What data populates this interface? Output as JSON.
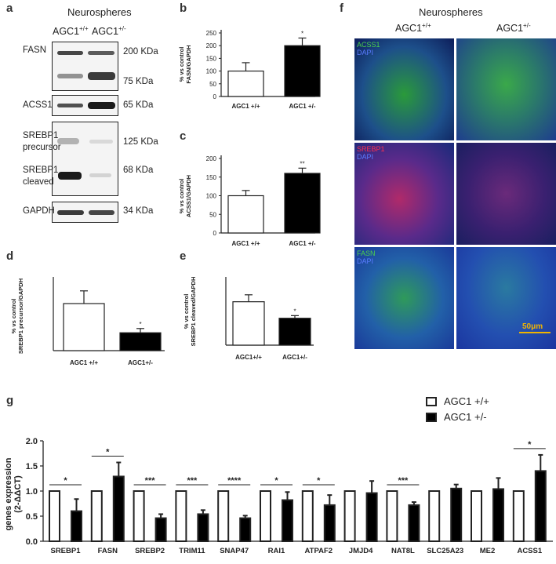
{
  "panels": {
    "a": {
      "letter": "a",
      "title": "Neurospheres",
      "col1": "AGC1",
      "col1_sup": "+/+",
      "col2": "AGC1",
      "col2_sup": "+/-",
      "fasn": "FASN",
      "fasn_kda1": "200 KDa",
      "fasn_kda2": "75 KDa",
      "acss1": "ACSS1",
      "acss1_kda": "65 KDa",
      "srebp_prec_1": "SREBP1",
      "srebp_prec_2": "precursor",
      "srebp_prec_kda": "125 KDa",
      "srebp_cl_1": "SREBP1",
      "srebp_cl_2": "cleaved",
      "srebp_cl_kda": "68 KDa",
      "gapdh": "GAPDH",
      "gapdh_kda": "34 KDa"
    },
    "b": {
      "letter": "b"
    },
    "c": {
      "letter": "c"
    },
    "d": {
      "letter": "d"
    },
    "e": {
      "letter": "e"
    },
    "f": {
      "letter": "f",
      "title": "Neurospheres",
      "col1": "AGC1",
      "col1_sup": "+/+",
      "col2": "AGC1",
      "col2_sup": "+/-",
      "row1_label1": "ACSS1",
      "row1_label2": "DAPI",
      "row2_label1": "SREBP1",
      "row2_label2": "DAPI",
      "row3_label1": "FASN",
      "row3_label2": "DAPI",
      "scale": "50μm",
      "colors": {
        "green": "#3ec43e",
        "blue": "#2f43b8",
        "red": "#d0243a",
        "magenta": "#8a2e86",
        "scale": "#f0b400"
      }
    },
    "g": {
      "letter": "g"
    }
  },
  "chart_data": [
    {
      "id": "b",
      "type": "bar",
      "categories": [
        "AGC1 +/+",
        "AGC1 +/-"
      ],
      "values": [
        100,
        200
      ],
      "errors": [
        33,
        30
      ],
      "fills": [
        "#ffffff",
        "#000000"
      ],
      "significance": [
        "",
        "*"
      ],
      "ylabel": "% vs control\nFASN/GAPDH",
      "ylim": [
        0,
        250
      ],
      "yticks": [
        0,
        50,
        100,
        150,
        200,
        250
      ]
    },
    {
      "id": "c",
      "type": "bar",
      "categories": [
        "AGC1 +/+",
        "AGC1 +/-"
      ],
      "values": [
        100,
        160
      ],
      "errors": [
        14,
        14
      ],
      "fills": [
        "#ffffff",
        "#000000"
      ],
      "significance": [
        "",
        "**"
      ],
      "ylabel": "% vs control\nACSS1/GAPDH",
      "ylim": [
        0,
        200
      ],
      "yticks": [
        0,
        50,
        100,
        150,
        200
      ]
    },
    {
      "id": "d",
      "type": "bar",
      "categories": [
        "AGC1 +/+",
        "AGC1+/-"
      ],
      "values": [
        100,
        38
      ],
      "errors": [
        27,
        9
      ],
      "fills": [
        "#ffffff",
        "#000000"
      ],
      "significance": [
        "",
        "*"
      ],
      "ylabel": "% vs control\nSREBP1 precursor/GAPDH",
      "ylim": [
        0,
        150
      ],
      "yticks": []
    },
    {
      "id": "e",
      "type": "bar",
      "categories": [
        "AGC1+/+",
        "AGC1+/-"
      ],
      "values": [
        100,
        62
      ],
      "errors": [
        16,
        6
      ],
      "fills": [
        "#ffffff",
        "#000000"
      ],
      "significance": [
        "",
        "*"
      ],
      "ylabel": "% vs control\nSREBP1 cleaved/GAPDH",
      "ylim": [
        0,
        150
      ],
      "yticks": []
    },
    {
      "id": "g",
      "type": "bar",
      "categories": [
        "SREBP1",
        "FASN",
        "SREBP2",
        "TRIM11",
        "SNAP47",
        "RAI1",
        "ATPAF2",
        "JMJD4",
        "NAT8L",
        "SLC25A23",
        "ME2",
        "ACSS1"
      ],
      "series": [
        {
          "name": "AGC1 +/+",
          "values": [
            1,
            1,
            1,
            1,
            1,
            1,
            1,
            1,
            1,
            1,
            1,
            1
          ],
          "errors": [
            0,
            0,
            0,
            0,
            0,
            0,
            0,
            0,
            0,
            0,
            0,
            0
          ],
          "fill": "#ffffff"
        },
        {
          "name": "AGC1 +/-",
          "values": [
            0.6,
            1.29,
            0.46,
            0.54,
            0.46,
            0.82,
            0.72,
            0.96,
            0.72,
            1.05,
            1.04,
            1.4
          ],
          "errors": [
            0.24,
            0.28,
            0.08,
            0.08,
            0.05,
            0.16,
            0.2,
            0.24,
            0.06,
            0.08,
            0.22,
            0.32
          ],
          "fill": "#000000"
        }
      ],
      "significance": [
        "*",
        "*",
        "***",
        "***",
        "****",
        "*",
        "*",
        "",
        "***",
        "",
        "",
        "*"
      ],
      "ylabel": "genes expression\n(2-ΔΔCT)",
      "ylim": [
        0,
        2.0
      ],
      "yticks": [
        "0.0",
        "0.5",
        "1.0",
        "1.5",
        "2.0"
      ],
      "legend": "top-right"
    }
  ]
}
